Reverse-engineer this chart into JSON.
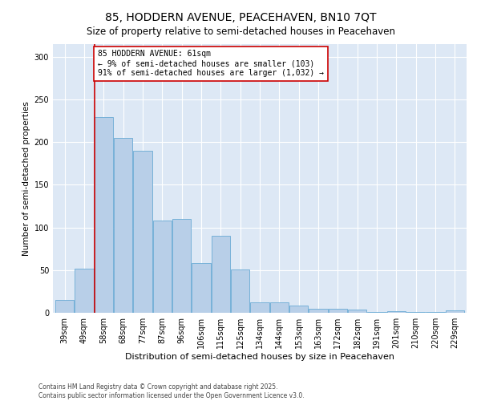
{
  "title": "85, HODDERN AVENUE, PEACEHAVEN, BN10 7QT",
  "subtitle": "Size of property relative to semi-detached houses in Peacehaven",
  "xlabel": "Distribution of semi-detached houses by size in Peacehaven",
  "ylabel": "Number of semi-detached properties",
  "categories": [
    "39sqm",
    "49sqm",
    "58sqm",
    "68sqm",
    "77sqm",
    "87sqm",
    "96sqm",
    "106sqm",
    "115sqm",
    "125sqm",
    "134sqm",
    "144sqm",
    "153sqm",
    "163sqm",
    "172sqm",
    "182sqm",
    "191sqm",
    "201sqm",
    "210sqm",
    "220sqm",
    "229sqm"
  ],
  "values": [
    15,
    52,
    229,
    205,
    190,
    108,
    110,
    58,
    90,
    51,
    12,
    12,
    8,
    5,
    5,
    4,
    1,
    2,
    1,
    1,
    3
  ],
  "bar_color": "#b8cfe8",
  "bar_edge_color": "#6aaad4",
  "vline_color": "#cc0000",
  "vline_x_index": 1.55,
  "annotation_text": "85 HODDERN AVENUE: 61sqm\n← 9% of semi-detached houses are smaller (103)\n91% of semi-detached houses are larger (1,032) →",
  "annotation_box_facecolor": "white",
  "annotation_box_edgecolor": "#cc0000",
  "ylim": [
    0,
    315
  ],
  "yticks": [
    0,
    50,
    100,
    150,
    200,
    250,
    300
  ],
  "background_color": "#dde8f5",
  "footer": "Contains HM Land Registry data © Crown copyright and database right 2025.\nContains public sector information licensed under the Open Government Licence v3.0.",
  "title_fontsize": 10,
  "subtitle_fontsize": 8.5,
  "xlabel_fontsize": 8,
  "ylabel_fontsize": 7.5,
  "tick_fontsize": 7,
  "annotation_fontsize": 7,
  "footer_fontsize": 5.5
}
